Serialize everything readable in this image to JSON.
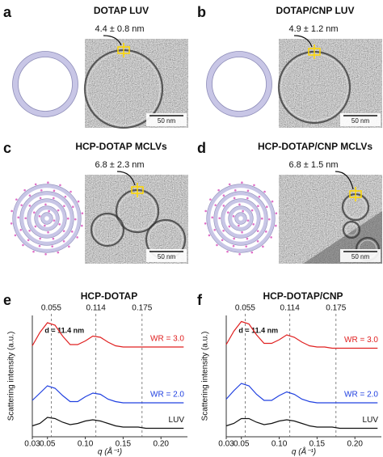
{
  "panels": [
    {
      "label": "a",
      "title": "DOTAP LUV",
      "measurement": "4.4 ± 0.8 nm",
      "scale_bar": "50 nm"
    },
    {
      "label": "b",
      "title": "DOTAP/CNP LUV",
      "measurement": "4.9 ± 1.2 nm",
      "scale_bar": "50 nm"
    },
    {
      "label": "c",
      "title": "HCP-DOTAP MCLVs",
      "measurement": "6.8 ± 2.3 nm",
      "scale_bar": "50 nm"
    },
    {
      "label": "d",
      "title": "HCP-DOTAP/CNP MCLVs",
      "measurement": "6.8 ± 1.5 nm",
      "scale_bar": "50 nm"
    }
  ],
  "chart_data": [
    {
      "type": "line",
      "label": "e",
      "title": "HCP-DOTAP",
      "x_label": "q (Å⁻¹)",
      "y_label": "Scattering intensity (a.u.)",
      "annotation": "d = 11.4 nm",
      "vlines": [
        0.055,
        0.114,
        0.175
      ],
      "xlim": [
        0.03,
        0.235
      ],
      "ylim": [
        0,
        10
      ],
      "xticks": [
        0.03,
        0.05,
        {
          "value": 0.1,
          "label": "0.10"
        },
        0.15,
        {
          "value": 0.2,
          "label": "0.20"
        }
      ],
      "x": [
        0.03,
        0.04,
        0.05,
        0.06,
        0.07,
        0.08,
        0.09,
        0.1,
        0.11,
        0.12,
        0.13,
        0.14,
        0.15,
        0.16,
        0.17,
        0.18,
        0.19,
        0.2,
        0.21,
        0.22,
        0.23
      ],
      "series": [
        {
          "name": "WR = 3.0",
          "color": "#e02020",
          "values": [
            7.5,
            8.6,
            9.4,
            9.2,
            8.3,
            7.6,
            7.6,
            7.9,
            8.3,
            8.2,
            7.8,
            7.5,
            7.4,
            7.4,
            7.4,
            7.4,
            7.4,
            7.4,
            7.4,
            7.4,
            7.4
          ]
        },
        {
          "name": "WR = 2.0",
          "color": "#2040e0",
          "values": [
            3.0,
            3.6,
            4.2,
            4.0,
            3.4,
            2.9,
            2.9,
            3.3,
            3.6,
            3.5,
            3.1,
            2.9,
            2.8,
            2.8,
            2.8,
            2.8,
            2.8,
            2.8,
            2.8,
            2.8,
            2.8
          ]
        },
        {
          "name": "LUV",
          "color": "#111111",
          "values": [
            0.9,
            1.1,
            1.6,
            1.5,
            1.2,
            1.0,
            1.1,
            1.3,
            1.4,
            1.3,
            1.1,
            0.9,
            0.8,
            0.8,
            0.8,
            0.7,
            0.7,
            0.7,
            0.7,
            0.7,
            0.7
          ]
        }
      ]
    },
    {
      "type": "line",
      "label": "f",
      "title": "HCP-DOTAP/CNP",
      "x_label": "q (Å⁻¹)",
      "y_label": "Scattering intensity (a.u.)",
      "annotation": "d = 11.4 nm",
      "vlines": [
        0.055,
        0.114,
        0.175
      ],
      "xlim": [
        0.03,
        0.235
      ],
      "ylim": [
        0,
        10
      ],
      "xticks": [
        0.03,
        0.05,
        {
          "value": 0.1,
          "label": "0.10"
        },
        0.15,
        {
          "value": 0.2,
          "label": "0.20"
        }
      ],
      "x": [
        0.03,
        0.04,
        0.05,
        0.06,
        0.07,
        0.08,
        0.09,
        0.1,
        0.11,
        0.12,
        0.13,
        0.14,
        0.15,
        0.16,
        0.17,
        0.18,
        0.19,
        0.2,
        0.21,
        0.22,
        0.23
      ],
      "series": [
        {
          "name": "WR = 3.0",
          "color": "#e02020",
          "values": [
            7.6,
            8.7,
            9.5,
            9.3,
            8.4,
            7.7,
            7.7,
            8.0,
            8.4,
            8.2,
            7.8,
            7.5,
            7.4,
            7.4,
            7.3,
            7.3,
            7.3,
            7.3,
            7.3,
            7.3,
            7.3
          ]
        },
        {
          "name": "WR = 2.0",
          "color": "#2040e0",
          "values": [
            3.1,
            3.8,
            4.4,
            4.2,
            3.5,
            3.0,
            3.0,
            3.4,
            3.7,
            3.5,
            3.1,
            2.9,
            2.8,
            2.8,
            2.8,
            2.8,
            2.8,
            2.8,
            2.8,
            2.8,
            2.8
          ]
        },
        {
          "name": "LUV",
          "color": "#111111",
          "values": [
            0.9,
            1.1,
            1.5,
            1.5,
            1.2,
            1.0,
            1.1,
            1.3,
            1.4,
            1.3,
            1.1,
            0.9,
            0.8,
            0.8,
            0.8,
            0.7,
            0.7,
            0.7,
            0.7,
            0.7,
            0.7
          ]
        }
      ]
    }
  ]
}
